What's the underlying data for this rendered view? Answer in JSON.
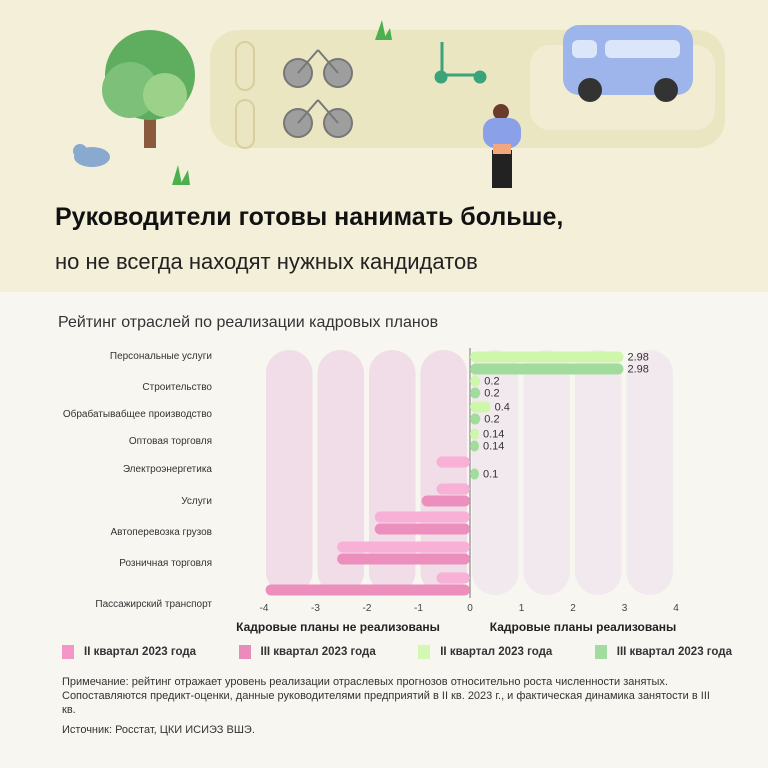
{
  "header": {
    "title": "Руководители готовы нанимать больше,",
    "subtitle": "но не всегда находят нужных кандидатов"
  },
  "chart_data": {
    "type": "bar",
    "orientation": "horizontal",
    "title": "Рейтинг отраслей по реализации кадровых планов",
    "categories": [
      "Персональные услуги",
      "Строительство",
      "Обрабатывабщее производство",
      "Оптовая торговля",
      "Электроэнергетика",
      "Услуги",
      "Автоперевозка грузов",
      "Розничная торговля",
      "Пассажирский транспорт"
    ],
    "series": [
      {
        "name": "II квартал 2023 года",
        "values": [
          2.98,
          0.2,
          0.4,
          0.14,
          -0.65,
          -0.65,
          -1.85,
          -2.58,
          -0.65
        ]
      },
      {
        "name": "III квартал 2023 года",
        "values": [
          2.98,
          0.2,
          0.2,
          0.14,
          0.1,
          -0.94,
          -1.85,
          -2.58,
          -3.97
        ]
      }
    ],
    "data_labels": [
      [
        "2.98",
        "2.98"
      ],
      [
        "0.2",
        "0.2"
      ],
      [
        "0.4",
        "0.2"
      ],
      [
        "0.14",
        "0.14"
      ],
      [
        null,
        "0.1"
      ],
      [
        null,
        null
      ],
      [
        null,
        null
      ],
      [
        null,
        null
      ],
      [
        null,
        null
      ]
    ],
    "xlim": [
      -4,
      4
    ],
    "x_ticks": [
      "-4",
      "-3",
      "-2",
      "-1",
      "0",
      "1",
      "2",
      "3",
      "4"
    ],
    "axis_caption_negative": "Кадровые планы не реализованы",
    "axis_caption_positive": "Кадровые планы реализованы",
    "legend": [
      {
        "label": "II квартал 2023 года",
        "color": "#f497c6"
      },
      {
        "label": "III квартал 2023 года",
        "color": "#e98cbc"
      },
      {
        "label": "II квартал 2023 года",
        "color": "#d4f7b4"
      },
      {
        "label": "III квартал 2023 года",
        "color": "#a3dc9f"
      }
    ],
    "colors": {
      "neg_q2": "#f9b0d6",
      "neg_q3": "#ec8fbd",
      "pos_q2": "#cef7ab",
      "pos_q3": "#a2dc9d"
    },
    "legend_position": "bottom",
    "grid": false
  },
  "footer": {
    "note": "Примечание: рейтинг отражает уровень реализации отраслевых прогнозов относительно роста численности занятых. Сопоставляются предикт-оценки, данные руководителями предприятий в II кв. 2023 г., и фактическая динамика занятости в III кв.",
    "source": "Источник: Росстат, ЦКИ ИСИЭЗ ВШЭ."
  }
}
